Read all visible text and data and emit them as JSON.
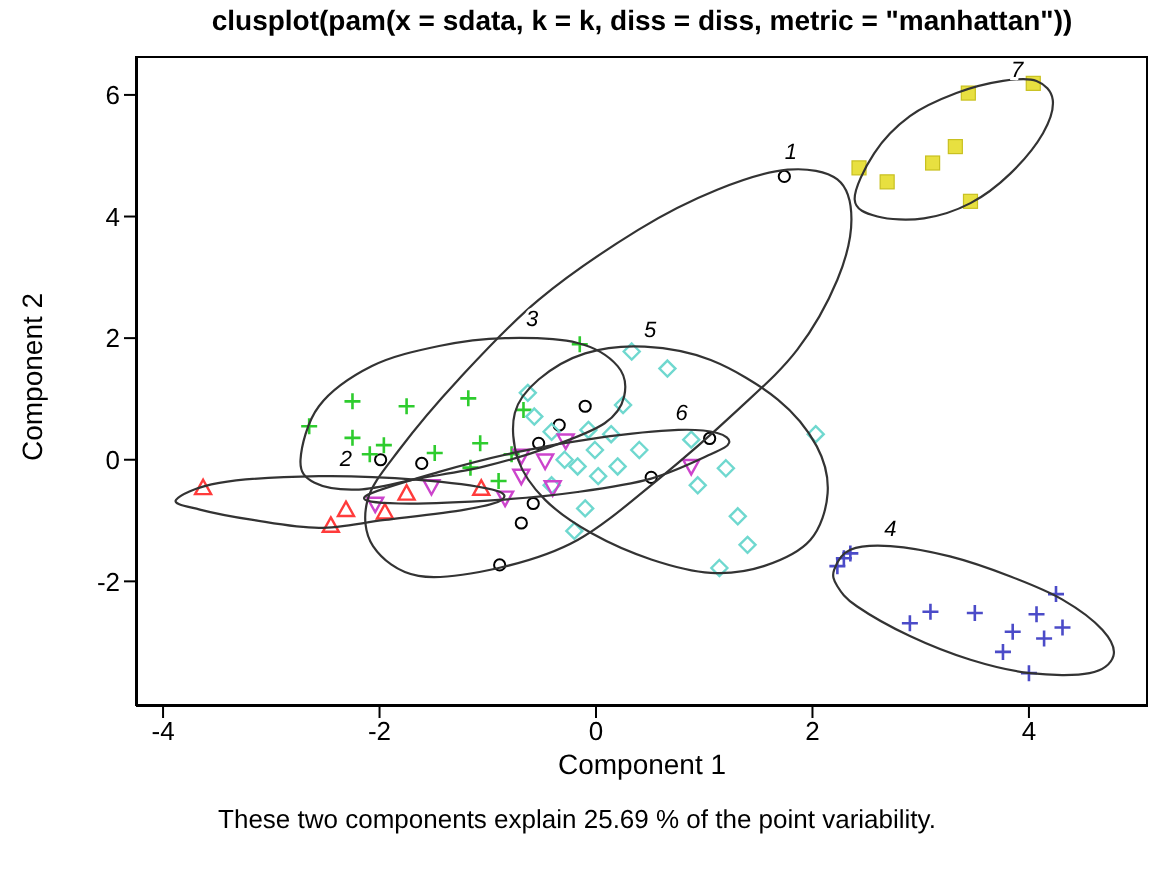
{
  "chart_data": {
    "type": "scatter",
    "title": "clusplot(pam(x = sdata, k = k, diss = diss, metric = \"manhattan\"))",
    "xlabel": "Component 1",
    "ylabel": "Component 2",
    "xlim": [
      -4.25,
      5.1
    ],
    "ylim": [
      -4.05,
      6.64
    ],
    "xticks": [
      -4,
      -2,
      0,
      2,
      4
    ],
    "yticks": [
      -2,
      0,
      2,
      4,
      6
    ],
    "grid": false,
    "series": [
      {
        "type": "scatter",
        "marker": "circle",
        "color": "#000000",
        "x": [
          -1.99,
          -1.61,
          -0.53,
          -0.34,
          -0.1,
          -0.69,
          -0.58,
          -0.89,
          0.51,
          1.05,
          1.74
        ],
        "values": [
          0,
          -0.06,
          0.27,
          0.57,
          0.88,
          -1.04,
          -0.72,
          -1.73,
          -0.29,
          0.35,
          4.66
        ]
      },
      {
        "type": "scatter",
        "marker": "triangle",
        "color": "#ff3b3b",
        "x": [
          -3.63,
          -2.31,
          -2.45,
          -1.95,
          -1.75,
          -1.06
        ],
        "values": [
          -0.46,
          -0.82,
          -1.08,
          -0.86,
          -0.55,
          -0.47
        ]
      },
      {
        "type": "scatter",
        "marker": "cross",
        "color": "#2ecc2e",
        "x": [
          -2.65,
          -2.25,
          -1.75,
          -1.18,
          -0.67,
          -2.25,
          -1.96,
          -2.09,
          -1.49,
          -1.07,
          -1.16,
          -0.78,
          -0.9,
          -0.15
        ],
        "values": [
          0.55,
          0.96,
          0.88,
          1.01,
          0.82,
          0.36,
          0.24,
          0.09,
          0.11,
          0.27,
          -0.13,
          0.09,
          -0.35,
          1.9
        ]
      },
      {
        "type": "scatter",
        "marker": "cross",
        "color": "#4b4bc8",
        "x": [
          2.23,
          2.29,
          2.35,
          2.9,
          3.09,
          3.5,
          3.85,
          3.76,
          4.07,
          4.14,
          4.31,
          4.25,
          4.0
        ],
        "values": [
          -1.75,
          -1.62,
          -1.54,
          -2.69,
          -2.5,
          -2.52,
          -2.83,
          -3.16,
          -2.54,
          -2.94,
          -2.76,
          -2.21,
          -3.51
        ]
      },
      {
        "type": "scatter",
        "marker": "diamond",
        "color": "#6fd8cf",
        "x": [
          0.33,
          0.66,
          -0.63,
          -0.57,
          -0.07,
          0.14,
          -0.41,
          -0.01,
          0.4,
          -0.29,
          -0.17,
          0.02,
          0.2,
          -0.41,
          0.88,
          1.2,
          0.94,
          -0.1,
          -0.2,
          1.31,
          1.4,
          1.14,
          2.03,
          0.25
        ],
        "values": [
          1.78,
          1.5,
          1.1,
          0.71,
          0.49,
          0.42,
          0.46,
          0.16,
          0.16,
          0,
          -0.11,
          -0.27,
          -0.11,
          -0.42,
          0.33,
          -0.14,
          -0.42,
          -0.8,
          -1.17,
          -0.93,
          -1.4,
          -1.78,
          0.42,
          0.9
        ]
      },
      {
        "type": "scatter",
        "marker": "triangle_down",
        "color": "#cc44cc",
        "x": [
          -2.04,
          -1.52,
          -0.84,
          -0.69,
          -0.69,
          -0.47,
          -0.28,
          -0.4,
          0.88
        ],
        "values": [
          -0.73,
          -0.44,
          -0.63,
          0.06,
          -0.27,
          -0.02,
          0.31,
          -0.46,
          -0.11
        ]
      },
      {
        "type": "scatter",
        "marker": "square",
        "color": "#e8e040",
        "x": [
          3.44,
          4.04,
          2.43,
          2.69,
          3.11,
          3.32,
          3.46
        ],
        "values": [
          6.03,
          6.19,
          4.8,
          4.57,
          4.88,
          5.15,
          4.25
        ]
      }
    ],
    "annotations": [
      "1",
      "2",
      "3",
      "4",
      "5",
      "6",
      "7",
      "These two components explain 25.69 % of the point variability."
    ]
  }
}
